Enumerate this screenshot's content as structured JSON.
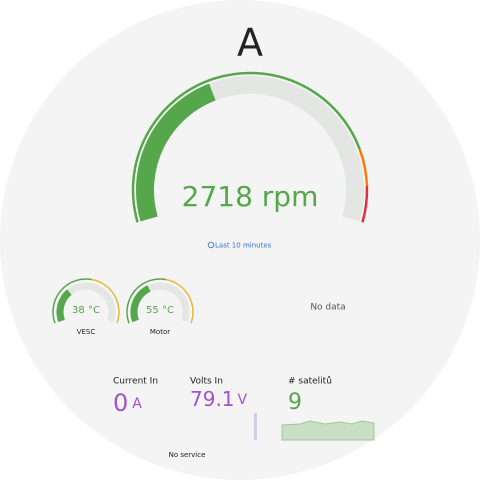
{
  "title": "A",
  "rpm_gauge": {
    "value": "2718",
    "unit": "rpm",
    "time_range": "Last 10 minutes"
  },
  "temp_gauges": [
    {
      "value": "38",
      "unit": "°C",
      "label": "VESC"
    },
    {
      "value": "55",
      "unit": "°C",
      "label": "Motor"
    }
  ],
  "empty_panel": "No data",
  "stats": [
    {
      "label": "Current In",
      "value": "0",
      "unit": "A"
    },
    {
      "label": "Volts In",
      "value": "79.1",
      "unit": "V"
    },
    {
      "label": "# satelitů",
      "value": "9"
    }
  ],
  "footer": "No service"
}
